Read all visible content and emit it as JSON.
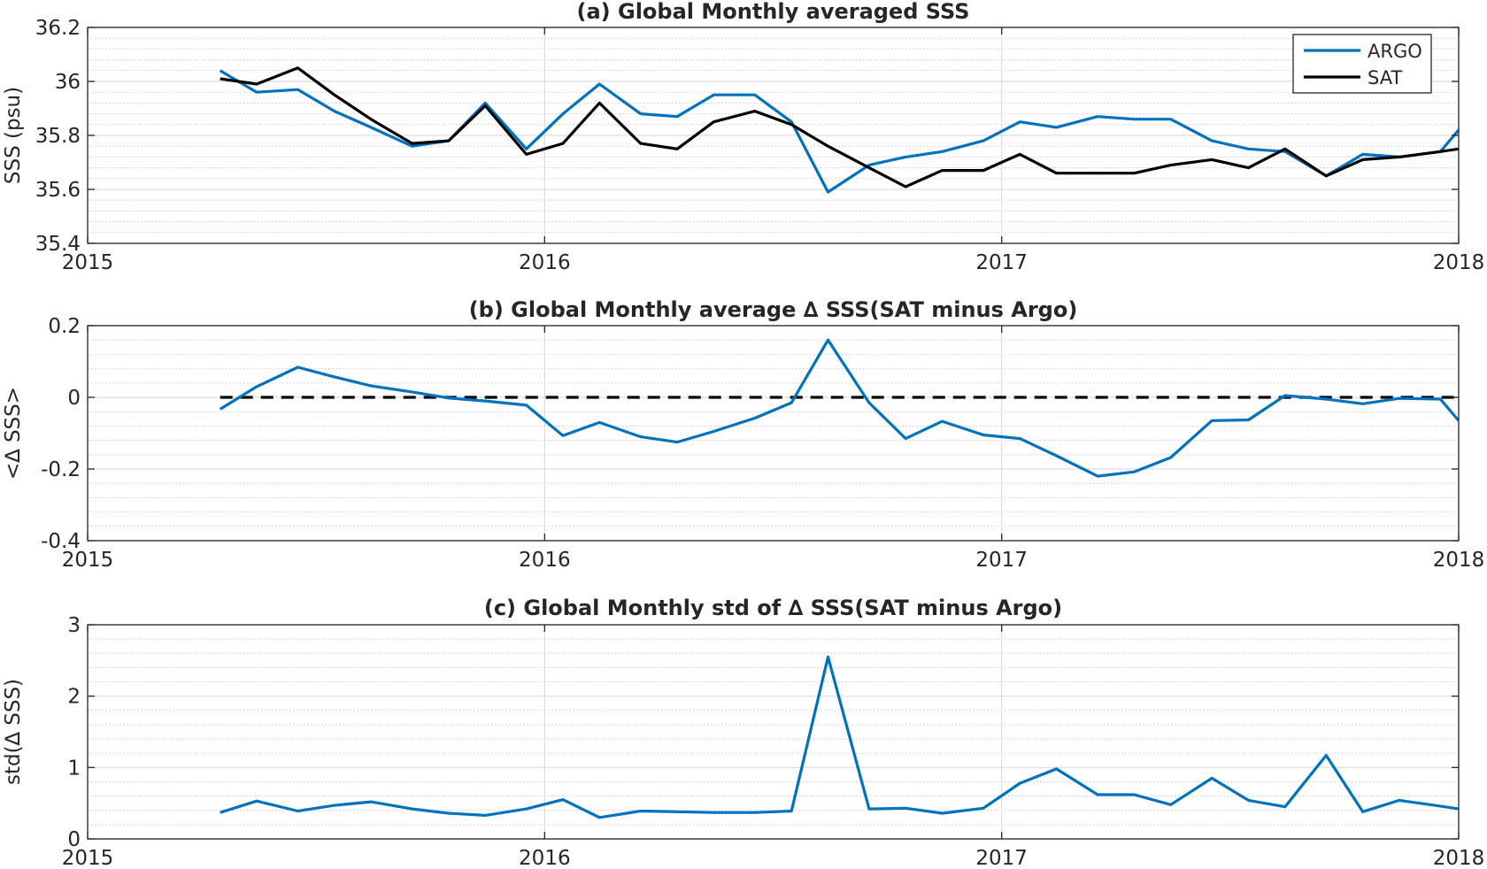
{
  "colors": {
    "argo": "#0072BD",
    "sat": "#000000",
    "axis": "#262626",
    "grid": "#dcdcdc",
    "minor_grid": "#c8c8c8"
  },
  "chart_data": [
    {
      "type": "line",
      "title": "(a) Global Monthly averaged SSS",
      "ylabel": "SSS (psu)",
      "xlim": [
        2015,
        2018
      ],
      "ylim": [
        35.4,
        36.2
      ],
      "xticks": [
        2015,
        2016,
        2017,
        2018
      ],
      "xtick_labels": [
        "2015",
        "2016",
        "2017",
        "2018"
      ],
      "yticks": [
        35.4,
        35.6,
        35.8,
        36,
        36.2
      ],
      "ytick_labels": [
        "35.4",
        "35.6",
        "35.8",
        "36",
        "36.2"
      ],
      "grid": true,
      "legend": {
        "location": "top-right",
        "entries": [
          "ARGO",
          "SAT"
        ]
      },
      "x": [
        2015.29,
        2015.37,
        2015.46,
        2015.54,
        2015.62,
        2015.71,
        2015.79,
        2015.87,
        2015.96,
        2016.04,
        2016.12,
        2016.21,
        2016.29,
        2016.37,
        2016.46,
        2016.54,
        2016.62,
        2016.71,
        2016.79,
        2016.87,
        2016.96,
        2017.04,
        2017.12,
        2017.21,
        2017.29,
        2017.37,
        2017.46,
        2017.54,
        2017.62,
        2017.71,
        2017.79,
        2017.87,
        2017.96,
        2018.0
      ],
      "series": [
        {
          "name": "ARGO",
          "color": "#0072BD",
          "values": [
            36.04,
            35.96,
            35.97,
            35.89,
            35.83,
            35.76,
            35.78,
            35.92,
            35.75,
            35.88,
            35.99,
            35.88,
            35.87,
            35.95,
            35.95,
            35.85,
            35.59,
            35.69,
            35.72,
            35.74,
            35.78,
            35.85,
            35.83,
            35.87,
            35.86,
            35.86,
            35.78,
            35.75,
            35.74,
            35.65,
            35.73,
            35.72,
            35.74,
            35.82
          ]
        },
        {
          "name": "SAT",
          "color": "#000000",
          "values": [
            36.01,
            35.99,
            36.05,
            35.95,
            35.86,
            35.77,
            35.78,
            35.91,
            35.73,
            35.77,
            35.92,
            35.77,
            35.75,
            35.85,
            35.89,
            35.84,
            35.76,
            35.68,
            35.61,
            35.67,
            35.67,
            35.73,
            35.66,
            35.66,
            35.66,
            35.69,
            35.71,
            35.68,
            35.75,
            35.65,
            35.71,
            35.72,
            35.74,
            35.75
          ]
        }
      ]
    },
    {
      "type": "line",
      "title": "(b) Global Monthly average ∆ SSS(SAT minus Argo)",
      "ylabel": "<∆ SSS>",
      "xlim": [
        2015,
        2018
      ],
      "ylim": [
        -0.4,
        0.2
      ],
      "xticks": [
        2015,
        2016,
        2017,
        2018
      ],
      "xtick_labels": [
        "2015",
        "2016",
        "2017",
        "2018"
      ],
      "yticks": [
        -0.4,
        -0.2,
        0,
        0.2
      ],
      "ytick_labels": [
        "-0.4",
        "-0.2",
        "0",
        "0.2"
      ],
      "grid": true,
      "reference_line": {
        "y": 0,
        "style": "dashed",
        "color": "#000000"
      },
      "x": [
        2015.29,
        2015.37,
        2015.46,
        2015.54,
        2015.62,
        2015.71,
        2015.79,
        2015.87,
        2015.96,
        2016.04,
        2016.12,
        2016.21,
        2016.29,
        2016.37,
        2016.46,
        2016.54,
        2016.62,
        2016.71,
        2016.79,
        2016.87,
        2016.96,
        2017.04,
        2017.12,
        2017.21,
        2017.29,
        2017.37,
        2017.46,
        2017.54,
        2017.62,
        2017.71,
        2017.79,
        2017.87,
        2017.96,
        2018.0
      ],
      "series": [
        {
          "color": "#0072BD",
          "values": [
            -0.033,
            0.03,
            0.084,
            0.057,
            0.032,
            0.015,
            -0.002,
            -0.01,
            -0.022,
            -0.107,
            -0.07,
            -0.11,
            -0.125,
            -0.095,
            -0.058,
            -0.015,
            0.16,
            -0.015,
            -0.115,
            -0.067,
            -0.105,
            -0.115,
            -0.163,
            -0.22,
            -0.208,
            -0.168,
            -0.065,
            -0.063,
            0.005,
            -0.005,
            -0.018,
            -0.003,
            -0.005,
            -0.065
          ]
        }
      ]
    },
    {
      "type": "line",
      "title": "(c) Global Monthly std of ∆ SSS(SAT minus Argo)",
      "ylabel": "std(∆ SSS)",
      "xlim": [
        2015,
        2018
      ],
      "ylim": [
        0,
        3
      ],
      "xticks": [
        2015,
        2016,
        2017,
        2018
      ],
      "xtick_labels": [
        "2015",
        "2016",
        "2017",
        "2018"
      ],
      "yticks": [
        0,
        1,
        2,
        3
      ],
      "ytick_labels": [
        "0",
        "1",
        "2",
        "3"
      ],
      "grid": true,
      "x": [
        2015.29,
        2015.37,
        2015.46,
        2015.54,
        2015.62,
        2015.71,
        2015.79,
        2015.87,
        2015.96,
        2016.04,
        2016.12,
        2016.21,
        2016.29,
        2016.37,
        2016.46,
        2016.54,
        2016.62,
        2016.71,
        2016.79,
        2016.87,
        2016.96,
        2017.04,
        2017.12,
        2017.21,
        2017.29,
        2017.37,
        2017.46,
        2017.54,
        2017.62,
        2017.71,
        2017.79,
        2017.87,
        2017.96,
        2018.0
      ],
      "series": [
        {
          "color": "#0072BD",
          "values": [
            0.37,
            0.53,
            0.39,
            0.47,
            0.52,
            0.42,
            0.36,
            0.33,
            0.42,
            0.55,
            0.3,
            0.39,
            0.38,
            0.37,
            0.37,
            0.39,
            2.55,
            0.42,
            0.43,
            0.36,
            0.43,
            0.78,
            0.98,
            0.62,
            0.62,
            0.48,
            0.85,
            0.54,
            0.45,
            1.17,
            0.38,
            0.54,
            0.46,
            0.42
          ]
        }
      ]
    }
  ]
}
